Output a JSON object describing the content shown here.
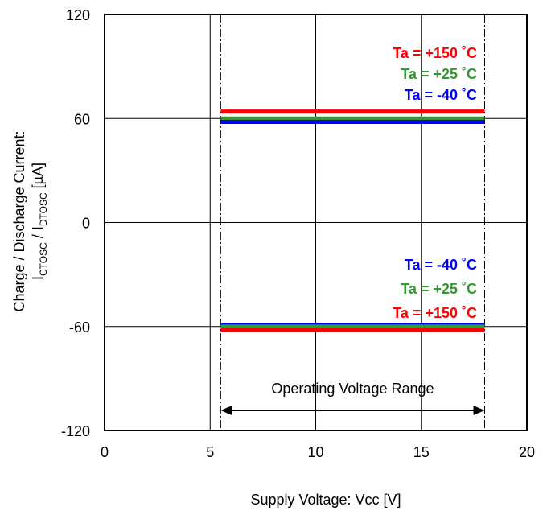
{
  "chart_data": {
    "type": "line",
    "title": "",
    "xlabel": "Supply Voltage: Vcc [V]",
    "ylabel_line1": "Charge / Discharge Current:",
    "ylabel_line2": {
      "i1": "I",
      "sub1": "CTOSC",
      "mid": " / I",
      "sub2": "DTOSC",
      "unit": " [µA]"
    },
    "xlim": [
      0,
      20
    ],
    "ylim": [
      -120,
      120
    ],
    "x_ticks": [
      "0",
      "5",
      "10",
      "15",
      "20"
    ],
    "y_ticks": [
      "120",
      "60",
      "0",
      "-60",
      "-120"
    ],
    "x_tick_values": [
      0,
      5,
      10,
      15,
      20
    ],
    "y_tick_values": [
      120,
      60,
      0,
      -60,
      -120
    ],
    "grid": true,
    "series": [
      {
        "group": "charge",
        "name": "Ta = +150 ˚C",
        "color": "#ff0000",
        "x": [
          5.5,
          18
        ],
        "y": [
          64,
          64
        ]
      },
      {
        "group": "charge",
        "name": "Ta = +25 ˚C",
        "color": "#339933",
        "x": [
          5.5,
          18
        ],
        "y": [
          60,
          60
        ]
      },
      {
        "group": "charge",
        "name": "Ta = -40 ˚C",
        "color": "#0000ff",
        "x": [
          5.5,
          18
        ],
        "y": [
          58,
          58
        ]
      },
      {
        "group": "discharge",
        "name": "Ta = -40 ˚C",
        "color": "#0000ff",
        "x": [
          5.5,
          18
        ],
        "y": [
          -59,
          -59
        ]
      },
      {
        "group": "discharge",
        "name": "Ta = +25 ˚C",
        "color": "#339933",
        "x": [
          5.5,
          18
        ],
        "y": [
          -60,
          -60
        ]
      },
      {
        "group": "discharge",
        "name": "Ta = +150 ˚C",
        "color": "#ff0000",
        "x": [
          5.5,
          18
        ],
        "y": [
          -62,
          -62
        ]
      }
    ],
    "legend_top": [
      {
        "text": "Ta = +150 ˚C",
        "color": "#ff0000"
      },
      {
        "text": "Ta = +25 ˚C",
        "color": "#339933"
      },
      {
        "text": "Ta = -40 ˚C",
        "color": "#0000ff"
      }
    ],
    "legend_bottom": [
      {
        "text": "Ta = -40 ˚C",
        "color": "#0000ff"
      },
      {
        "text": "Ta = +25 ˚C",
        "color": "#339933"
      },
      {
        "text": "Ta = +150 ˚C",
        "color": "#ff0000"
      }
    ],
    "operating_range": {
      "label": "Operating Voltage Range",
      "x_min": 5.5,
      "x_max": 18
    }
  }
}
